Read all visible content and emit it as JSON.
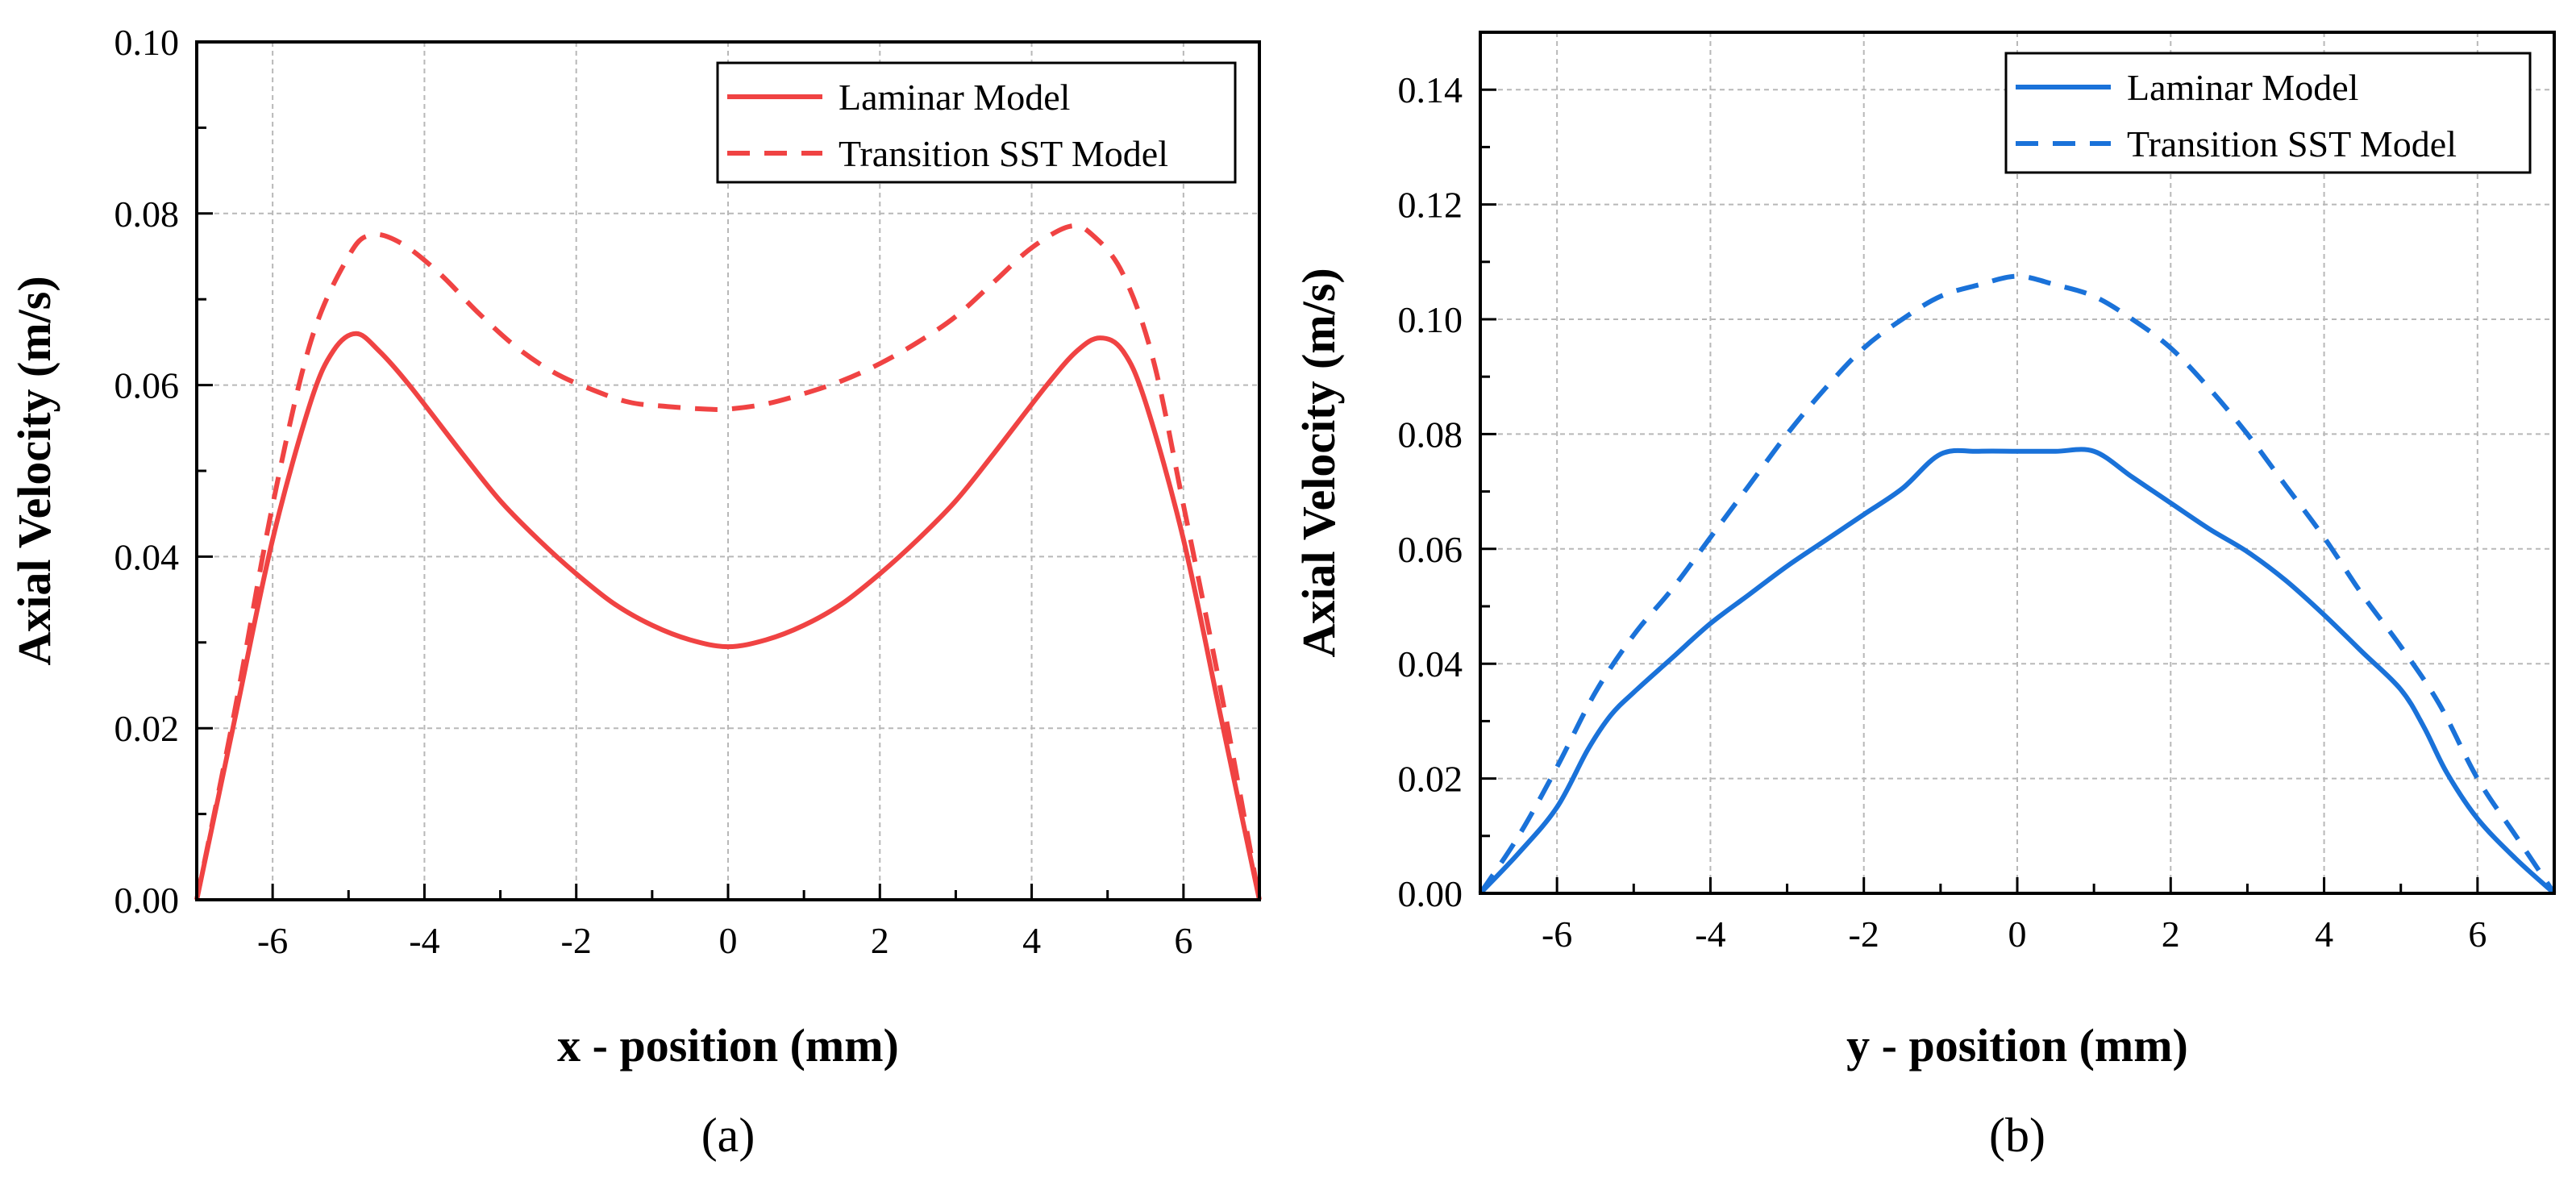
{
  "chart_data": [
    {
      "type": "line",
      "panel_label": "(a)",
      "xlabel": "x - position (mm)",
      "ylabel": "Axial Velocity (m/s)",
      "xlim": [
        -7,
        7
      ],
      "ylim": [
        0,
        0.1
      ],
      "xticks": [
        -6,
        -4,
        -2,
        0,
        2,
        4,
        6
      ],
      "xtick_labels": [
        "-6",
        "-4",
        "-2",
        "0",
        "2",
        "4",
        "6"
      ],
      "yticks": [
        0,
        0.02,
        0.04,
        0.06,
        0.08,
        0.1
      ],
      "ytick_labels": [
        "0.00",
        "0.02",
        "0.04",
        "0.06",
        "0.08",
        "0.10"
      ],
      "grid": true,
      "legend_position": "top-right",
      "color": "#f04343",
      "series": [
        {
          "name": "Laminar Model",
          "style": "solid",
          "x": [
            -7,
            -6.5,
            -6,
            -5.5,
            -5.2,
            -4.9,
            -4.6,
            -4.2,
            -3.5,
            -3,
            -2.5,
            -2,
            -1.5,
            -1,
            -0.5,
            0,
            0.5,
            1,
            1.5,
            2,
            2.5,
            3,
            3.5,
            4.2,
            4.6,
            4.9,
            5.2,
            5.5,
            6,
            6.5,
            7
          ],
          "values": [
            0,
            0.021,
            0.042,
            0.058,
            0.064,
            0.066,
            0.064,
            0.06,
            0.052,
            0.0465,
            0.042,
            0.038,
            0.0345,
            0.032,
            0.0303,
            0.0295,
            0.0303,
            0.032,
            0.0345,
            0.038,
            0.042,
            0.0465,
            0.052,
            0.06,
            0.064,
            0.0655,
            0.064,
            0.058,
            0.042,
            0.021,
            0
          ]
        },
        {
          "name": "Transition SST Model",
          "style": "dashed",
          "x": [
            -7,
            -6.5,
            -6,
            -5.5,
            -5,
            -4.7,
            -4.3,
            -3.8,
            -3.3,
            -2.8,
            -2.3,
            -1.8,
            -1.3,
            -0.8,
            -0.3,
            0,
            0.5,
            1,
            1.5,
            2,
            2.5,
            3,
            3.5,
            4,
            4.5,
            4.8,
            5.2,
            5.6,
            6,
            6.5,
            7
          ],
          "values": [
            0,
            0.022,
            0.046,
            0.065,
            0.075,
            0.0775,
            0.0765,
            0.073,
            0.0685,
            0.0645,
            0.0615,
            0.0595,
            0.058,
            0.0575,
            0.0572,
            0.0572,
            0.0578,
            0.059,
            0.0605,
            0.0625,
            0.065,
            0.068,
            0.072,
            0.076,
            0.0785,
            0.0775,
            0.073,
            0.063,
            0.046,
            0.024,
            0
          ]
        }
      ]
    },
    {
      "type": "line",
      "panel_label": "(b)",
      "xlabel": "y - position (mm)",
      "ylabel": "Axial Velocity (m/s)",
      "xlim": [
        -7,
        7
      ],
      "ylim": [
        0,
        0.15
      ],
      "xticks": [
        -6,
        -4,
        -2,
        0,
        2,
        4,
        6
      ],
      "xtick_labels": [
        "-6",
        "-4",
        "-2",
        "0",
        "2",
        "4",
        "6"
      ],
      "yticks": [
        0,
        0.02,
        0.04,
        0.06,
        0.08,
        0.1,
        0.12,
        0.14
      ],
      "ytick_labels": [
        "0.00",
        "0.02",
        "0.04",
        "0.06",
        "0.08",
        "0.10",
        "0.12",
        "0.14"
      ],
      "grid": true,
      "legend_position": "top-right",
      "color": "#1a72d9",
      "series": [
        {
          "name": "Laminar Model",
          "style": "solid",
          "x": [
            -7,
            -6.5,
            -6,
            -5.6,
            -5.3,
            -5,
            -4.5,
            -4,
            -3.5,
            -3,
            -2.5,
            -2,
            -1.5,
            -1,
            -0.5,
            0,
            0.5,
            1,
            1.5,
            2,
            2.5,
            3,
            3.5,
            4,
            4.5,
            5,
            5.3,
            5.6,
            6,
            6.5,
            7
          ],
          "values": [
            0,
            0.007,
            0.015,
            0.025,
            0.031,
            0.035,
            0.041,
            0.047,
            0.052,
            0.057,
            0.0615,
            0.066,
            0.0705,
            0.0765,
            0.077,
            0.077,
            0.077,
            0.077,
            0.0725,
            0.068,
            0.0635,
            0.0595,
            0.0545,
            0.0485,
            0.042,
            0.0355,
            0.029,
            0.021,
            0.013,
            0.006,
            0
          ]
        },
        {
          "name": "Transition SST Model",
          "style": "dashed",
          "x": [
            -7,
            -6.5,
            -6,
            -5.5,
            -5,
            -4.5,
            -4,
            -3.5,
            -3,
            -2.5,
            -2,
            -1.5,
            -1,
            -0.5,
            0,
            0.5,
            1,
            1.5,
            2,
            2.5,
            3,
            3.5,
            4,
            4.5,
            5,
            5.5,
            6,
            6.5,
            7
          ],
          "values": [
            0,
            0.01,
            0.022,
            0.035,
            0.045,
            0.053,
            0.062,
            0.071,
            0.08,
            0.088,
            0.095,
            0.1,
            0.104,
            0.106,
            0.1075,
            0.106,
            0.104,
            0.1,
            0.095,
            0.088,
            0.08,
            0.071,
            0.062,
            0.052,
            0.043,
            0.033,
            0.02,
            0.01,
            0
          ]
        }
      ]
    }
  ]
}
